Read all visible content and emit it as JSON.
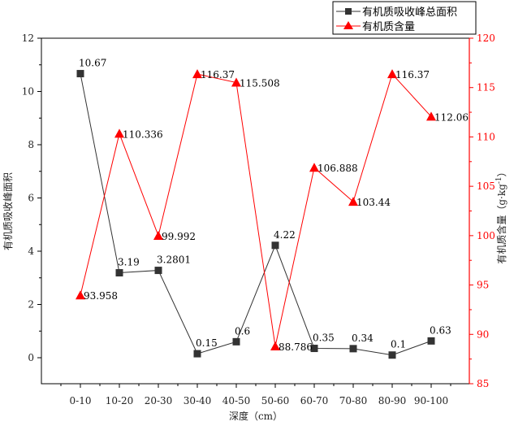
{
  "chart_data": {
    "type": "line",
    "categories": [
      "0-10",
      "10-20",
      "20-30",
      "30-40",
      "40-50",
      "50-60",
      "60-70",
      "70-80",
      "80-90",
      "90-100"
    ],
    "xlabel": "深度（cm）",
    "ylabel_left": "有机质吸收峰面积",
    "ylabel_right": "有机质含量（g·kg⁻¹）",
    "ylabel_right_base": "有机质含量（g·kg",
    "ylabel_right_sup": "-1",
    "ylabel_right_end": "）",
    "ylim_left": [
      0,
      12
    ],
    "yticks_left": [
      0,
      2,
      4,
      6,
      8,
      10,
      12
    ],
    "ylim_right": [
      85,
      120
    ],
    "yticks_right": [
      85,
      90,
      95,
      100,
      105,
      110,
      115,
      120
    ],
    "legend_position": "top-right",
    "grid": false,
    "colors": {
      "series1": "#333333",
      "series2": "#ff0000",
      "axis_right": "#ff0000",
      "axis_left": "#000000"
    },
    "series": [
      {
        "name": "有机质吸收峰总面积",
        "axis": "left",
        "marker": "square",
        "values": [
          10.67,
          3.19,
          3.2801,
          0.15,
          0.6,
          4.22,
          0.35,
          0.34,
          0.1,
          0.63
        ],
        "labels": [
          "10.67",
          "3.19",
          "3.2801",
          "0.15",
          "0.6",
          "4.22",
          "0.35",
          "0.34",
          "0.1",
          "0.63"
        ]
      },
      {
        "name": "有机质含量",
        "axis": "right",
        "marker": "triangle",
        "values": [
          93.958,
          110.336,
          99.992,
          116.37,
          115.508,
          88.786,
          106.888,
          103.44,
          116.37,
          112.06
        ],
        "labels": [
          "93.958",
          "110.336",
          "99.992",
          "116.37",
          "115.508",
          "88.786",
          "106.888",
          "103.44",
          "116.37",
          "112.06"
        ]
      }
    ]
  }
}
